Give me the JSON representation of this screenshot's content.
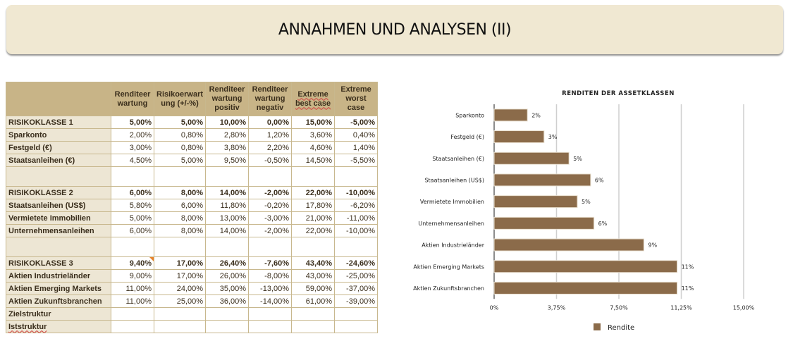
{
  "title": "ANNAHMEN UND ANALYSEN (II)",
  "table": {
    "headers": [
      "",
      "Renditeer wartung",
      "Risikoerwart ung (+/-%)",
      "Renditeer wartung positiv",
      "Renditeer wartung negativ",
      "Extreme best case",
      "Extreme worst case"
    ],
    "rows": [
      {
        "label": "RISIKOKLASSE 1",
        "bold": true,
        "values": [
          "5,00%",
          "5,00%",
          "10,00%",
          "0,00%",
          "15,00%",
          "-5,00%"
        ]
      },
      {
        "label": "Sparkonto",
        "values": [
          "2,00%",
          "0,80%",
          "2,80%",
          "1,20%",
          "3,60%",
          "0,40%"
        ]
      },
      {
        "label": "Festgeld (€)",
        "values": [
          "3,00%",
          "0,80%",
          "3,80%",
          "2,20%",
          "4,60%",
          "1,40%"
        ]
      },
      {
        "label": "Staatsanleihen (€)",
        "values": [
          "4,50%",
          "5,00%",
          "9,50%",
          "-0,50%",
          "14,50%",
          "-5,50%"
        ]
      },
      {
        "label": "",
        "spacer": true,
        "values": [
          "",
          "",
          "",
          "",
          "",
          ""
        ]
      },
      {
        "label": "RISIKOKLASSE 2",
        "bold": true,
        "values": [
          "6,00%",
          "8,00%",
          "14,00%",
          "-2,00%",
          "22,00%",
          "-10,00%"
        ]
      },
      {
        "label": "Staatsanleihen (US$)",
        "values": [
          "5,80%",
          "6,00%",
          "11,80%",
          "-0,20%",
          "17,80%",
          "-6,20%"
        ]
      },
      {
        "label": "Vermietete Immobilien",
        "values": [
          "5,00%",
          "8,00%",
          "13,00%",
          "-3,00%",
          "21,00%",
          "-11,00%"
        ]
      },
      {
        "label": "Unternehmensanleihen",
        "values": [
          "6,00%",
          "8,00%",
          "14,00%",
          "-2,00%",
          "22,00%",
          "-10,00%"
        ]
      },
      {
        "label": "",
        "spacer": true,
        "values": [
          "",
          "",
          "",
          "",
          "",
          ""
        ]
      },
      {
        "label": "RISIKOKLASSE 3",
        "bold": true,
        "values": [
          "9,40%",
          "17,00%",
          "26,40%",
          "-7,60%",
          "43,40%",
          "-24,60%"
        ]
      },
      {
        "label": "Aktien Industrieländer",
        "values": [
          "9,00%",
          "17,00%",
          "26,00%",
          "-8,00%",
          "43,00%",
          "-25,00%"
        ]
      },
      {
        "label": "Aktien Emerging Markets",
        "values": [
          "11,00%",
          "24,00%",
          "35,00%",
          "-13,00%",
          "59,00%",
          "-37,00%"
        ]
      },
      {
        "label": "Aktien Zukunftsbranchen",
        "values": [
          "11,00%",
          "25,00%",
          "36,00%",
          "-14,00%",
          "61,00%",
          "-39,00%"
        ]
      },
      {
        "label": "Zielstruktur",
        "values": [
          "",
          "",
          "",
          "",
          "",
          ""
        ]
      },
      {
        "label": "Iststruktur",
        "values": [
          "",
          "",
          "",
          "",
          "",
          ""
        ]
      }
    ]
  },
  "chart_data": {
    "type": "bar",
    "orientation": "horizontal",
    "title": "RENDITEN DER ASSETKLASSEN",
    "categories": [
      "Sparkonto",
      "Festgeld (€)",
      "Staatsanleihen (€)",
      "Staatsanleihen (US$)",
      "Vermietete Immobilien",
      "Unternehmensanleihen",
      "Aktien Industrieländer",
      "Aktien Emerging Markets",
      "Aktien Zukunftsbranchen"
    ],
    "series": [
      {
        "name": "Rendite",
        "values": [
          2.0,
          3.0,
          4.5,
          5.8,
          5.0,
          6.0,
          9.0,
          11.0,
          11.0
        ],
        "color": "#8b6b4a"
      }
    ],
    "data_labels": [
      "2%",
      "3%",
      "5%",
      "6%",
      "5%",
      "6%",
      "9%",
      "11%",
      "11%"
    ],
    "xlim": [
      0,
      15
    ],
    "xticks": [
      0,
      3.75,
      7.5,
      11.25,
      15
    ],
    "xtick_labels": [
      "0%",
      "3,75%",
      "7,50%",
      "11,25%",
      "15,00%"
    ],
    "grid": true,
    "legend": "bottom-center",
    "xlabel": "",
    "ylabel": ""
  }
}
